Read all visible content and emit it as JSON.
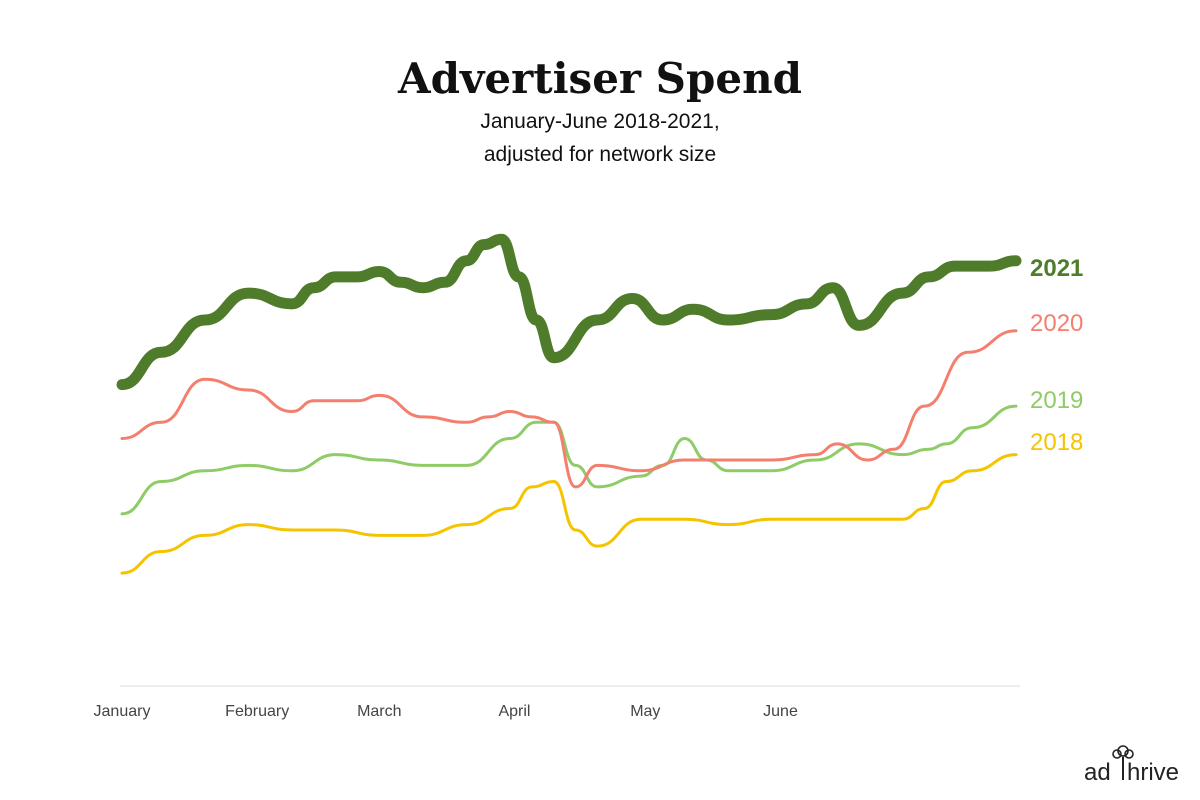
{
  "chart_data": {
    "type": "line",
    "title": "Advertiser Spend",
    "subtitle": [
      "January-June 2018-2021,",
      "adjusted for network size"
    ],
    "xlabel": "",
    "ylabel": "",
    "x_tick_labels": [
      "January",
      "February",
      "March",
      "April",
      "May",
      "June"
    ],
    "x_range": [
      "Jan 1",
      "Jun 26"
    ],
    "ylim": [
      0,
      100
    ],
    "grid": false,
    "legend": "end-of-line labels",
    "series": [
      {
        "name": "2021",
        "color": "#4e7c2a",
        "emphasis": true,
        "points": [
          [
            1,
            70
          ],
          [
            10,
            76
          ],
          [
            20,
            82
          ],
          [
            30,
            87
          ],
          [
            40,
            85
          ],
          [
            45,
            88
          ],
          [
            50,
            90
          ],
          [
            55,
            90
          ],
          [
            60,
            91
          ],
          [
            65,
            89
          ],
          [
            70,
            88
          ],
          [
            75,
            89
          ],
          [
            80,
            93
          ],
          [
            84,
            96
          ],
          [
            88,
            97
          ],
          [
            92,
            90
          ],
          [
            96,
            82
          ],
          [
            100,
            75
          ],
          [
            110,
            82
          ],
          [
            118,
            86
          ],
          [
            125,
            82
          ],
          [
            132,
            84
          ],
          [
            140,
            82
          ],
          [
            150,
            83
          ],
          [
            158,
            85
          ],
          [
            164,
            88
          ],
          [
            170,
            81
          ],
          [
            180,
            87
          ],
          [
            186,
            90
          ],
          [
            192,
            92
          ],
          [
            200,
            92
          ],
          [
            206,
            93
          ]
        ]
      },
      {
        "name": "2020",
        "color": "#f47f6e",
        "emphasis": false,
        "points": [
          [
            1,
            60
          ],
          [
            10,
            63
          ],
          [
            20,
            71
          ],
          [
            30,
            69
          ],
          [
            40,
            65
          ],
          [
            45,
            67
          ],
          [
            55,
            67
          ],
          [
            60,
            68
          ],
          [
            70,
            64
          ],
          [
            80,
            63
          ],
          [
            85,
            64
          ],
          [
            90,
            65
          ],
          [
            95,
            64
          ],
          [
            100,
            63
          ],
          [
            105,
            51
          ],
          [
            110,
            55
          ],
          [
            120,
            54
          ],
          [
            130,
            56
          ],
          [
            140,
            56
          ],
          [
            150,
            56
          ],
          [
            160,
            57
          ],
          [
            165,
            59
          ],
          [
            172,
            56
          ],
          [
            178,
            58
          ],
          [
            185,
            66
          ],
          [
            195,
            76
          ],
          [
            206,
            80
          ]
        ]
      },
      {
        "name": "2019",
        "color": "#8fcb66",
        "emphasis": false,
        "points": [
          [
            1,
            46
          ],
          [
            10,
            52
          ],
          [
            20,
            54
          ],
          [
            30,
            55
          ],
          [
            40,
            54
          ],
          [
            50,
            57
          ],
          [
            60,
            56
          ],
          [
            70,
            55
          ],
          [
            80,
            55
          ],
          [
            90,
            60
          ],
          [
            96,
            63
          ],
          [
            100,
            63
          ],
          [
            105,
            55
          ],
          [
            110,
            51
          ],
          [
            120,
            53
          ],
          [
            125,
            55
          ],
          [
            130,
            60
          ],
          [
            135,
            56
          ],
          [
            140,
            54
          ],
          [
            150,
            54
          ],
          [
            160,
            56
          ],
          [
            170,
            59
          ],
          [
            180,
            57
          ],
          [
            186,
            58
          ],
          [
            190,
            59
          ],
          [
            196,
            62
          ],
          [
            206,
            66
          ]
        ]
      },
      {
        "name": "2018",
        "color": "#f5c400",
        "emphasis": false,
        "points": [
          [
            1,
            35
          ],
          [
            10,
            39
          ],
          [
            20,
            42
          ],
          [
            30,
            44
          ],
          [
            40,
            43
          ],
          [
            50,
            43
          ],
          [
            60,
            42
          ],
          [
            70,
            42
          ],
          [
            80,
            44
          ],
          [
            90,
            47
          ],
          [
            95,
            51
          ],
          [
            100,
            52
          ],
          [
            105,
            43
          ],
          [
            110,
            40
          ],
          [
            120,
            45
          ],
          [
            130,
            45
          ],
          [
            140,
            44
          ],
          [
            150,
            45
          ],
          [
            160,
            45
          ],
          [
            170,
            45
          ],
          [
            180,
            45
          ],
          [
            185,
            47
          ],
          [
            190,
            52
          ],
          [
            196,
            54
          ],
          [
            206,
            57
          ]
        ]
      }
    ]
  },
  "brand": {
    "logo_text": "adthrive"
  }
}
